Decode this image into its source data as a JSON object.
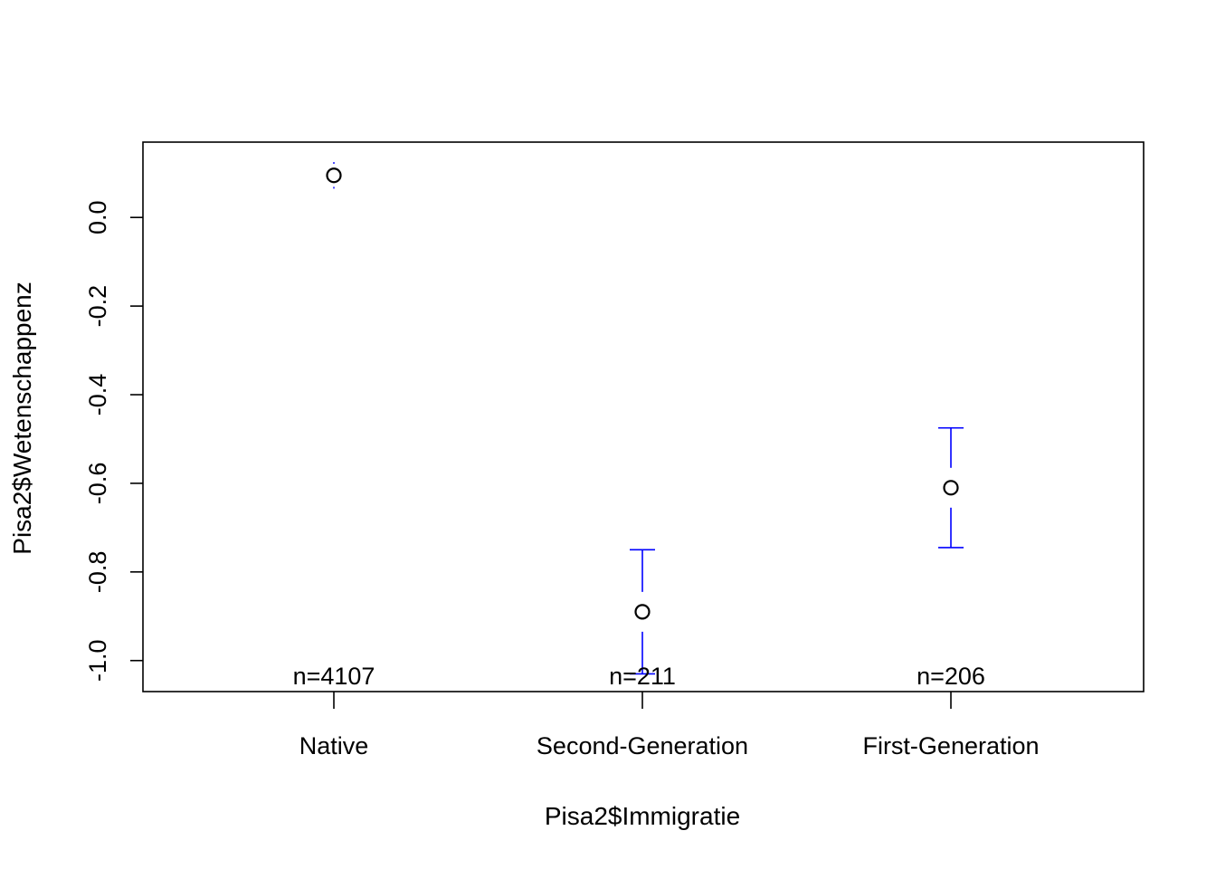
{
  "chart_data": {
    "type": "scatter",
    "xlabel": "Pisa2$Immigratie",
    "ylabel": "Pisa2$Wetenschappenz",
    "categories": [
      "Native",
      "Second-Generation",
      "First-Generation"
    ],
    "y_ticks": [
      0.0,
      -0.2,
      -0.4,
      -0.6,
      -0.8,
      -1.0
    ],
    "y_tick_labels": [
      "0.0",
      "-0.2",
      "-0.4",
      "-0.6",
      "-0.8",
      "-1.0"
    ],
    "ylim": [
      -1.07,
      0.17
    ],
    "means": [
      0.095,
      -0.89,
      -0.61
    ],
    "upper": [
      0.125,
      -0.75,
      -0.475
    ],
    "lower": [
      0.065,
      -1.03,
      -0.745
    ],
    "n_labels": [
      "n=4107",
      "n=211",
      "n=206"
    ],
    "error_bar_color": "#0000FF",
    "point_color": "#000000",
    "grid": false,
    "legend": "none"
  }
}
